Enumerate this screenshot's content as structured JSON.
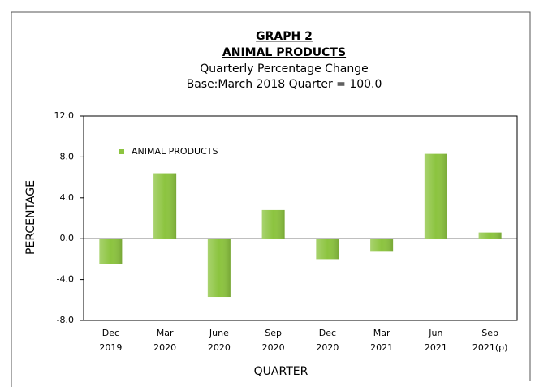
{
  "chart_data": {
    "type": "bar",
    "title": [
      "GRAPH 2",
      "ANIMAL PRODUCTS"
    ],
    "subtitle": [
      "Quarterly Percentage Change",
      "Base:March 2018 Quarter = 100.0"
    ],
    "x_label": "QUARTER",
    "y_label": "PERCENTAGE",
    "categories": [
      [
        "Dec",
        "2019"
      ],
      [
        "Mar",
        "2020"
      ],
      [
        "June",
        "2020"
      ],
      [
        "Sep",
        "2020"
      ],
      [
        "Dec",
        "2020"
      ],
      [
        "Mar",
        "2021"
      ],
      [
        "Jun",
        "2021"
      ],
      [
        "Sep",
        "2021(p)"
      ]
    ],
    "series": [
      {
        "name": "ANIMAL PRODUCTS",
        "color": "#8cc43f",
        "values": [
          -2.5,
          6.4,
          -5.7,
          2.8,
          -2.0,
          -1.2,
          8.3,
          0.6
        ]
      }
    ],
    "ylim": [
      -8,
      12
    ],
    "yticks": [
      {
        "value": -8,
        "label": "-8.0"
      },
      {
        "value": -4,
        "label": "-4.0"
      },
      {
        "value": 0,
        "label": "0.0"
      },
      {
        "value": 4,
        "label": "4.0"
      },
      {
        "value": 8,
        "label": "8.0"
      },
      {
        "value": 12,
        "label": "12.0"
      }
    ],
    "legend": "top-left",
    "grid": false
  }
}
